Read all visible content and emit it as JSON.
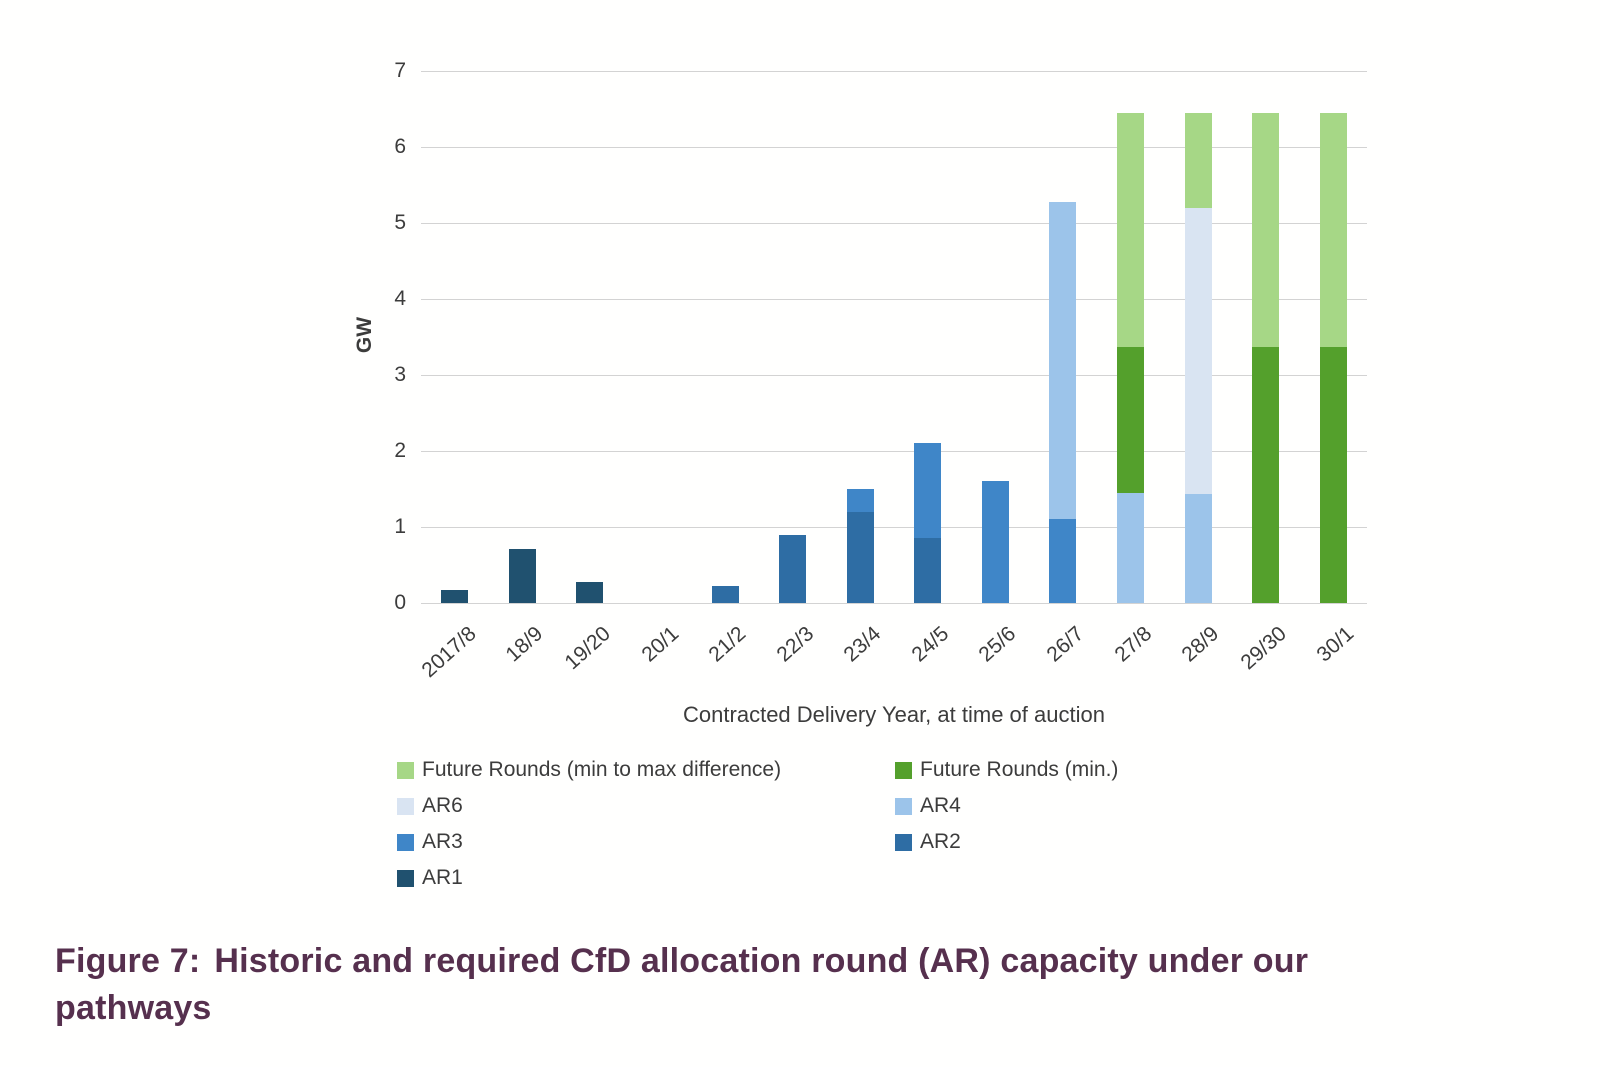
{
  "chart_data": {
    "type": "bar",
    "stacked": true,
    "title": "",
    "xlabel": "Contracted Delivery Year, at time of auction",
    "ylabel": "GW",
    "ylim": [
      0,
      7
    ],
    "yticks": [
      0,
      1,
      2,
      3,
      4,
      5,
      6,
      7
    ],
    "grid": true,
    "legend_position": "bottom",
    "categories": [
      "2017/8",
      "18/9",
      "19/20",
      "20/1",
      "21/2",
      "22/3",
      "23/4",
      "24/5",
      "25/6",
      "26/7",
      "27/8",
      "28/9",
      "29/30",
      "30/1"
    ],
    "series": [
      {
        "name": "AR1",
        "color": "#20516f",
        "values": [
          0.17,
          0.71,
          0.27,
          0,
          0,
          0,
          0,
          0,
          0,
          0,
          0,
          0,
          0,
          0
        ]
      },
      {
        "name": "AR2",
        "color": "#2e6da4",
        "values": [
          0,
          0,
          0,
          0,
          0.22,
          0.9,
          1.2,
          0.85,
          0,
          0,
          0,
          0,
          0,
          0
        ]
      },
      {
        "name": "AR3",
        "color": "#3f86c8",
        "values": [
          0,
          0,
          0,
          0,
          0,
          0,
          0.3,
          1.25,
          1.6,
          1.1,
          0,
          0,
          0,
          0
        ]
      },
      {
        "name": "AR4",
        "color": "#9cc4ea",
        "values": [
          0,
          0,
          0,
          0,
          0,
          0,
          0,
          0,
          0,
          4.17,
          1.45,
          1.43,
          0,
          0
        ]
      },
      {
        "name": "AR6",
        "color": "#d9e4f2",
        "values": [
          0,
          0,
          0,
          0,
          0,
          0,
          0,
          0,
          0,
          0,
          0,
          3.77,
          0,
          0
        ]
      },
      {
        "name": "Future Rounds (min.)",
        "color": "#54a02c",
        "values": [
          0,
          0,
          0,
          0,
          0,
          0,
          0,
          0,
          0,
          0,
          1.92,
          0,
          3.37,
          3.37
        ]
      },
      {
        "name": "Future Rounds (min to max difference)",
        "color": "#a6d786",
        "values": [
          0,
          0,
          0,
          0,
          0,
          0,
          0,
          0,
          0,
          0,
          3.08,
          1.25,
          3.08,
          3.08
        ]
      }
    ]
  },
  "legend": {
    "columns": [
      [
        {
          "label": "Future Rounds (min to max difference)",
          "color": "#a6d786"
        },
        {
          "label": "AR6",
          "color": "#d9e4f2"
        },
        {
          "label": "AR3",
          "color": "#3f86c8"
        },
        {
          "label": "AR1",
          "color": "#20516f"
        }
      ],
      [
        {
          "label": "Future Rounds (min.)",
          "color": "#54a02c"
        },
        {
          "label": "AR4",
          "color": "#9cc4ea"
        },
        {
          "label": "AR2",
          "color": "#2e6da4"
        }
      ]
    ]
  },
  "caption": {
    "label": "Figure 7:",
    "text": "Historic and required CfD allocation round (AR) capacity under our pathways",
    "color": "#56304e"
  }
}
